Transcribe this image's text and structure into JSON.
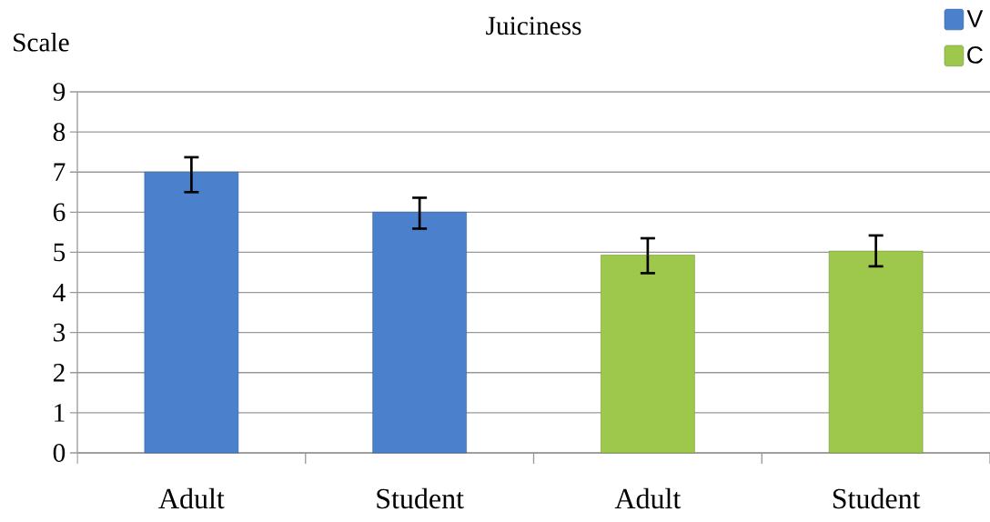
{
  "chart_data": {
    "type": "bar",
    "title": "Juiciness",
    "ylabel": "Scale",
    "categories": [
      "Adult",
      "Student",
      "Adult",
      "Student"
    ],
    "series": [
      {
        "name": "V",
        "color": "#4a80cc",
        "values": [
          7.0,
          6.0,
          null,
          null
        ],
        "errors": [
          [
            6.5,
            7.37
          ],
          [
            5.59,
            6.36
          ],
          null,
          null
        ]
      },
      {
        "name": "C",
        "color": "#9dc84c",
        "values": [
          null,
          null,
          4.93,
          5.03
        ],
        "errors": [
          null,
          null,
          [
            4.48,
            5.35
          ],
          [
            4.65,
            5.42
          ]
        ]
      }
    ],
    "ylim": [
      0,
      9
    ],
    "yticks": [
      0,
      1,
      2,
      3,
      4,
      5,
      6,
      7,
      8,
      9
    ],
    "grid": "y",
    "legend": "top right"
  }
}
